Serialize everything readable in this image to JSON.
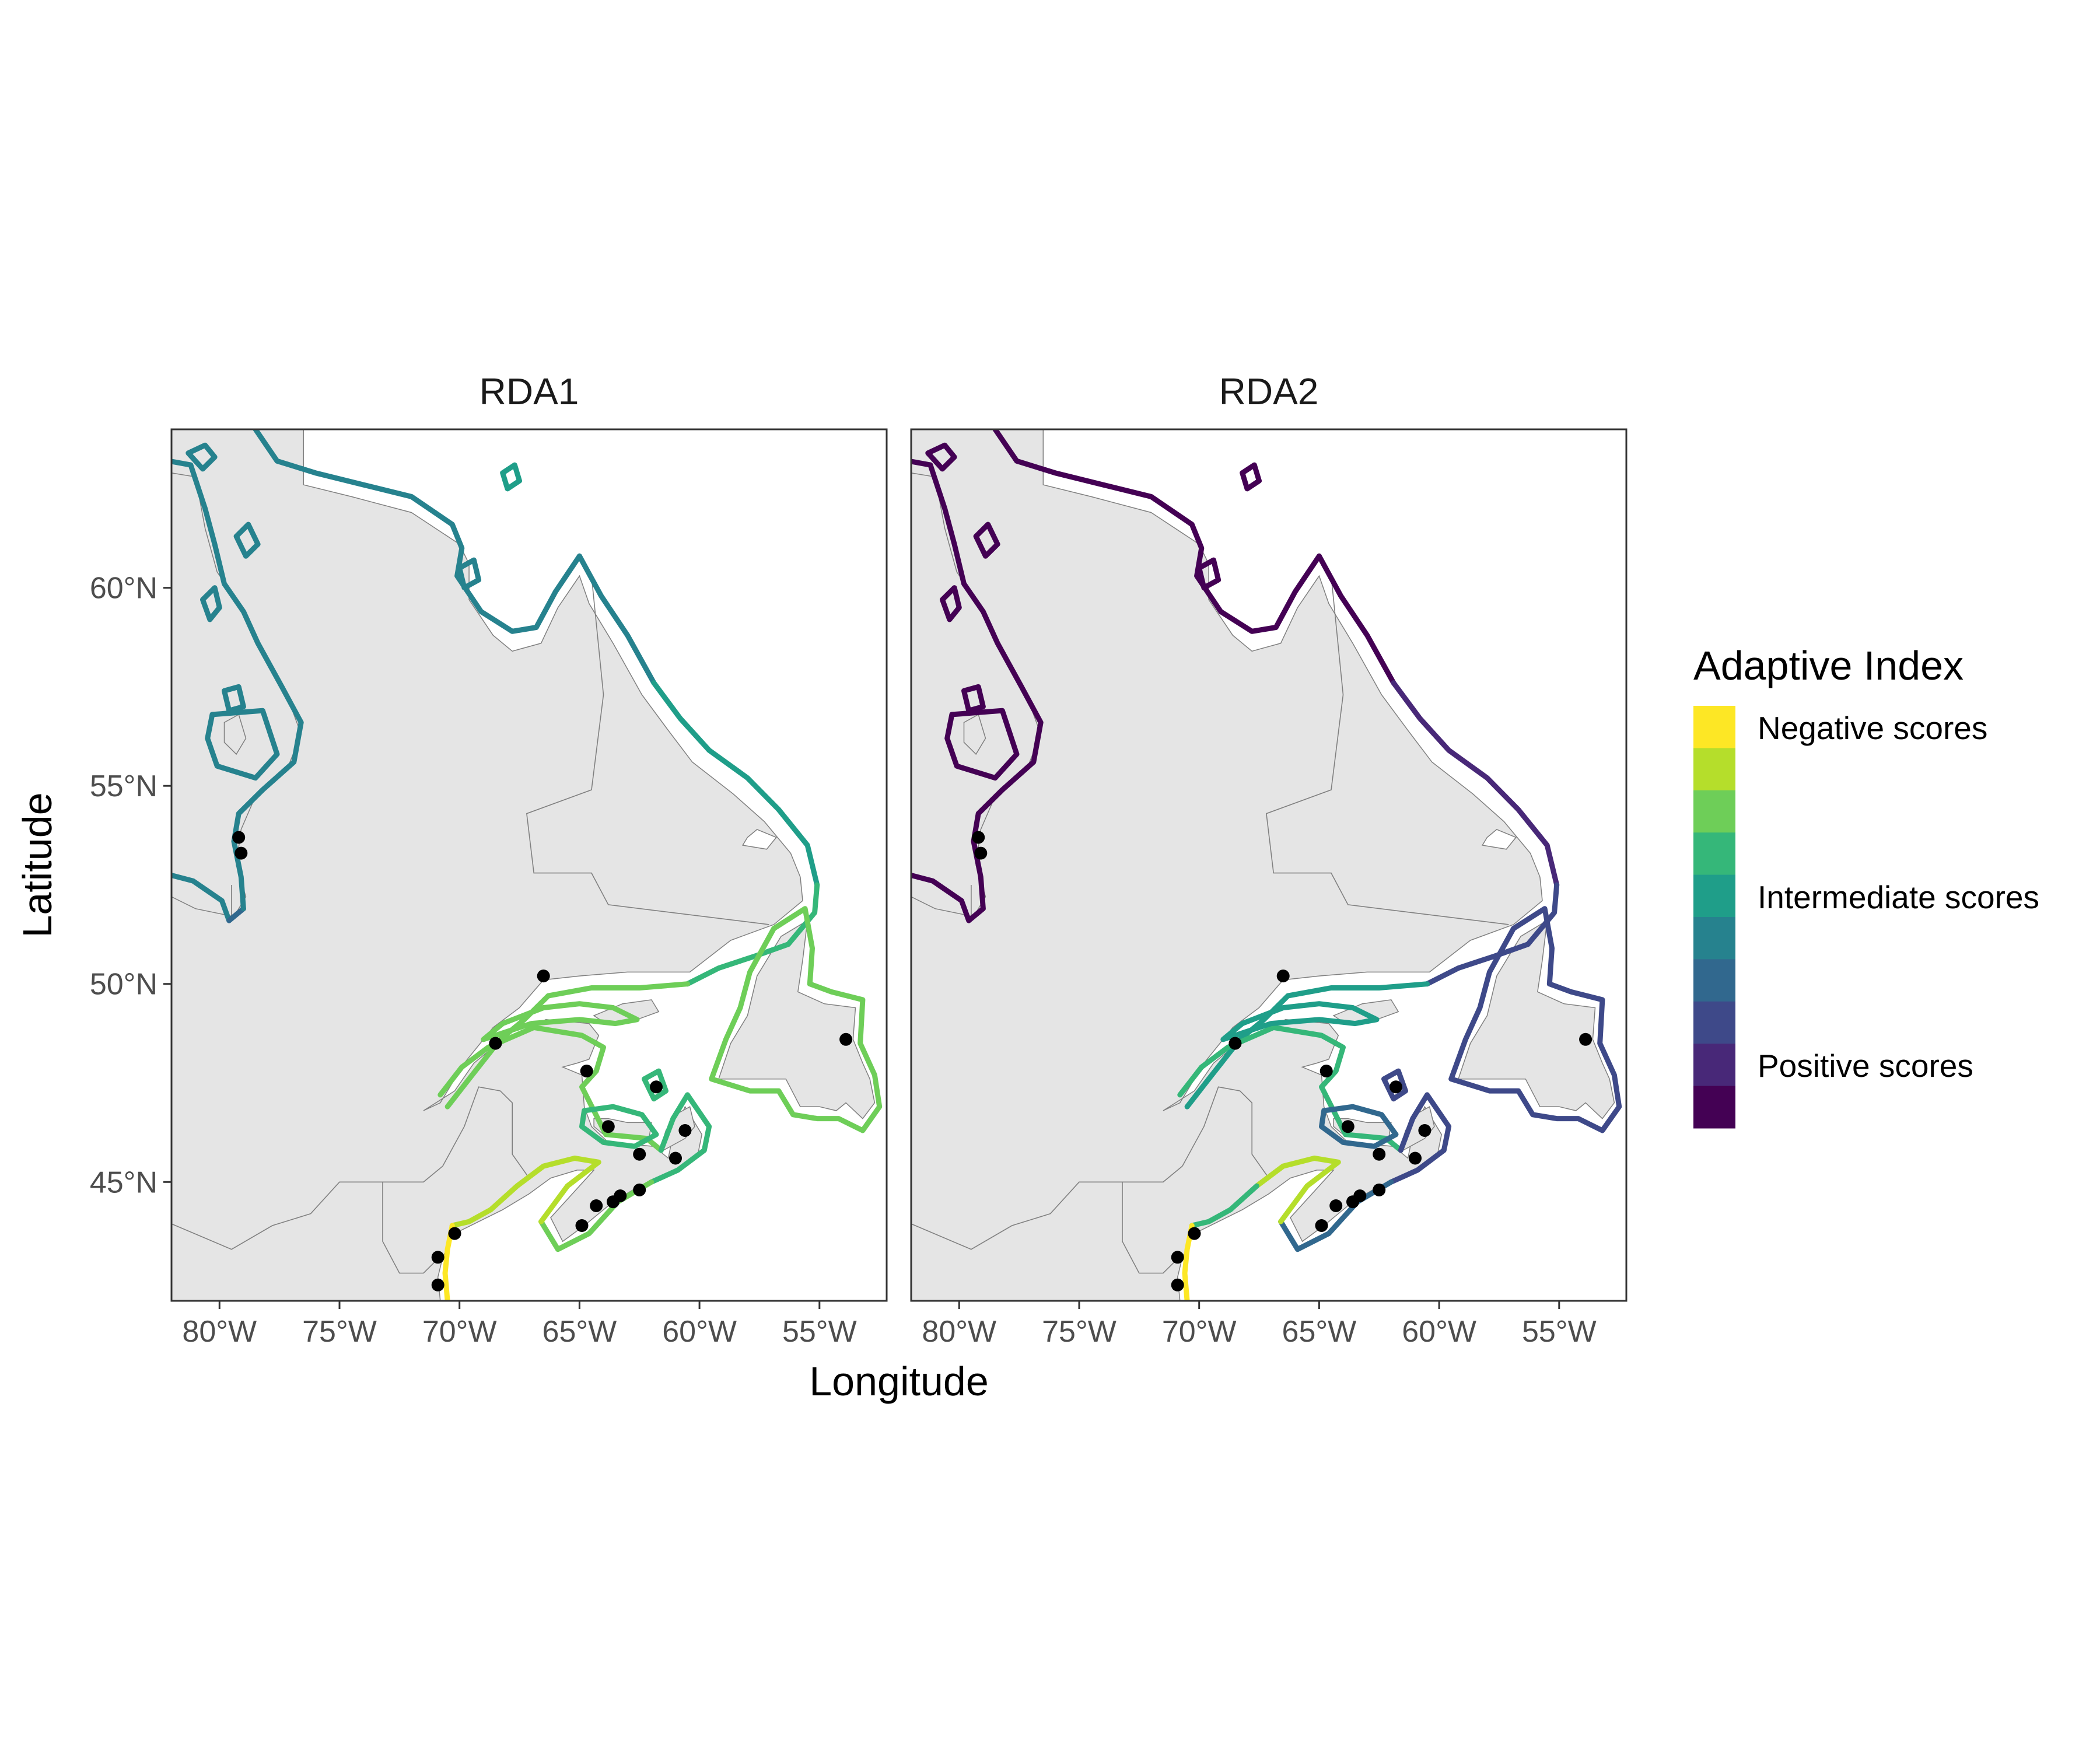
{
  "panels": [
    {
      "title": "RDA1",
      "coast_scheme": "rda1"
    },
    {
      "title": "RDA2",
      "coast_scheme": "rda2"
    }
  ],
  "axes": {
    "xlabel": "Longitude",
    "ylabel": "Latitude",
    "x_ticks": [
      "80°W",
      "75°W",
      "70°W",
      "65°W",
      "60°W",
      "55°W"
    ],
    "x_tick_values": [
      -80,
      -75,
      -70,
      -65,
      -60,
      -55
    ],
    "y_ticks": [
      "60°N",
      "55°N",
      "50°N",
      "45°N"
    ],
    "y_tick_values": [
      60,
      55,
      50,
      45
    ],
    "xlim": [
      -82,
      -52.2
    ],
    "ylim": [
      42,
      64
    ]
  },
  "legend": {
    "title": "Adaptive Index",
    "colors": [
      "#fde725",
      "#b5de2b",
      "#6ece58",
      "#35b779",
      "#1f9e89",
      "#26828e",
      "#31688e",
      "#3e4989",
      "#482878",
      "#440154"
    ],
    "labels": [
      "Negative scores",
      "Intermediate scores",
      "Positive scores"
    ]
  },
  "sampling_sites": [
    {
      "lon": -79.2,
      "lat": 53.7
    },
    {
      "lon": -79.1,
      "lat": 53.3
    },
    {
      "lon": -66.5,
      "lat": 50.2
    },
    {
      "lon": -68.5,
      "lat": 48.5
    },
    {
      "lon": -64.7,
      "lat": 47.8
    },
    {
      "lon": -61.8,
      "lat": 47.4
    },
    {
      "lon": -63.8,
      "lat": 46.4
    },
    {
      "lon": -60.6,
      "lat": 46.3
    },
    {
      "lon": -62.5,
      "lat": 45.7
    },
    {
      "lon": -61.0,
      "lat": 45.6
    },
    {
      "lon": -62.5,
      "lat": 44.8
    },
    {
      "lon": -63.3,
      "lat": 44.65
    },
    {
      "lon": -63.6,
      "lat": 44.5
    },
    {
      "lon": -64.3,
      "lat": 44.4
    },
    {
      "lon": -64.9,
      "lat": 43.9
    },
    {
      "lon": -53.9,
      "lat": 48.6
    },
    {
      "lon": -70.2,
      "lat": 43.7
    },
    {
      "lon": -70.9,
      "lat": 43.1
    },
    {
      "lon": -70.9,
      "lat": 42.4
    }
  ],
  "colors": {
    "land": "#e5e5e5",
    "border": "#808080",
    "panel_border": "#333333",
    "site": "#000000"
  }
}
